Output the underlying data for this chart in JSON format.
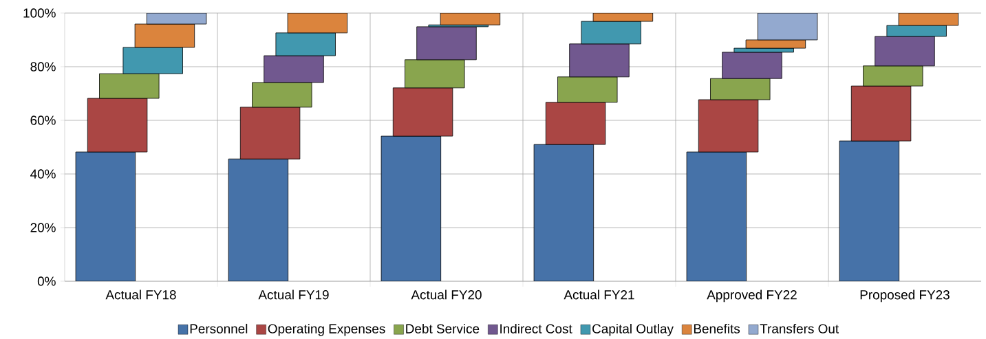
{
  "chart_data": {
    "type": "bar",
    "stacked": true,
    "categories": [
      "Actual FY18",
      "Actual FY19",
      "Actual FY20",
      "Actual FY21",
      "Approved FY22",
      "Proposed FY23"
    ],
    "series": [
      {
        "name": "Personnel",
        "color": "#4672a8",
        "values": [
          48.2,
          45.6,
          54.1,
          51.0,
          48.2,
          52.3
        ]
      },
      {
        "name": "Operating Expenses",
        "color": "#aa4644",
        "values": [
          20.0,
          19.3,
          18.0,
          15.7,
          19.5,
          20.5
        ]
      },
      {
        "name": "Debt Service",
        "color": "#89a54e",
        "values": [
          9.2,
          9.2,
          10.5,
          9.5,
          7.9,
          7.5
        ]
      },
      {
        "name": "Indirect Cost",
        "color": "#71588f",
        "values": [
          0,
          10.0,
          12.3,
          12.3,
          9.8,
          11.0
        ]
      },
      {
        "name": "Capital Outlay",
        "color": "#4198af",
        "values": [
          9.8,
          8.5,
          0.7,
          8.4,
          1.5,
          4.1
        ]
      },
      {
        "name": "Benefits",
        "color": "#db843d",
        "values": [
          8.7,
          7.4,
          4.4,
          3.1,
          3.1,
          4.6
        ]
      },
      {
        "name": "Transfers Out",
        "color": "#93a9cf",
        "values": [
          4.1,
          0,
          0,
          0,
          10.0,
          0
        ]
      }
    ],
    "ylim": [
      0,
      100
    ],
    "yticks": [
      {
        "value": 0,
        "label": "0%"
      },
      {
        "value": 20,
        "label": "20%"
      },
      {
        "value": 40,
        "label": "40%"
      },
      {
        "value": 60,
        "label": "60%"
      },
      {
        "value": 80,
        "label": "80%"
      },
      {
        "value": 100,
        "label": "100%"
      }
    ],
    "grid": true,
    "legend": "bottom"
  }
}
